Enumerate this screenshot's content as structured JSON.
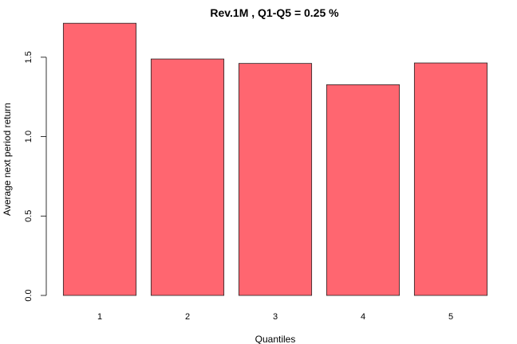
{
  "chart_data": {
    "type": "bar",
    "title": "Rev.1M ,  Q1-Q5  =  0.25 %",
    "xlabel": "Quantiles",
    "ylabel": "Average next period return",
    "categories": [
      "1",
      "2",
      "3",
      "4",
      "5"
    ],
    "values": [
      1.714,
      1.489,
      1.461,
      1.327,
      1.464
    ],
    "ylim": [
      0,
      1.72
    ],
    "yticks": [
      0.0,
      0.5,
      1.0,
      1.5
    ],
    "ytick_labels": [
      "0.0",
      "0.5",
      "1.0",
      "1.5"
    ],
    "bar_color": "#FF6670",
    "grid": false,
    "legend": "none"
  }
}
